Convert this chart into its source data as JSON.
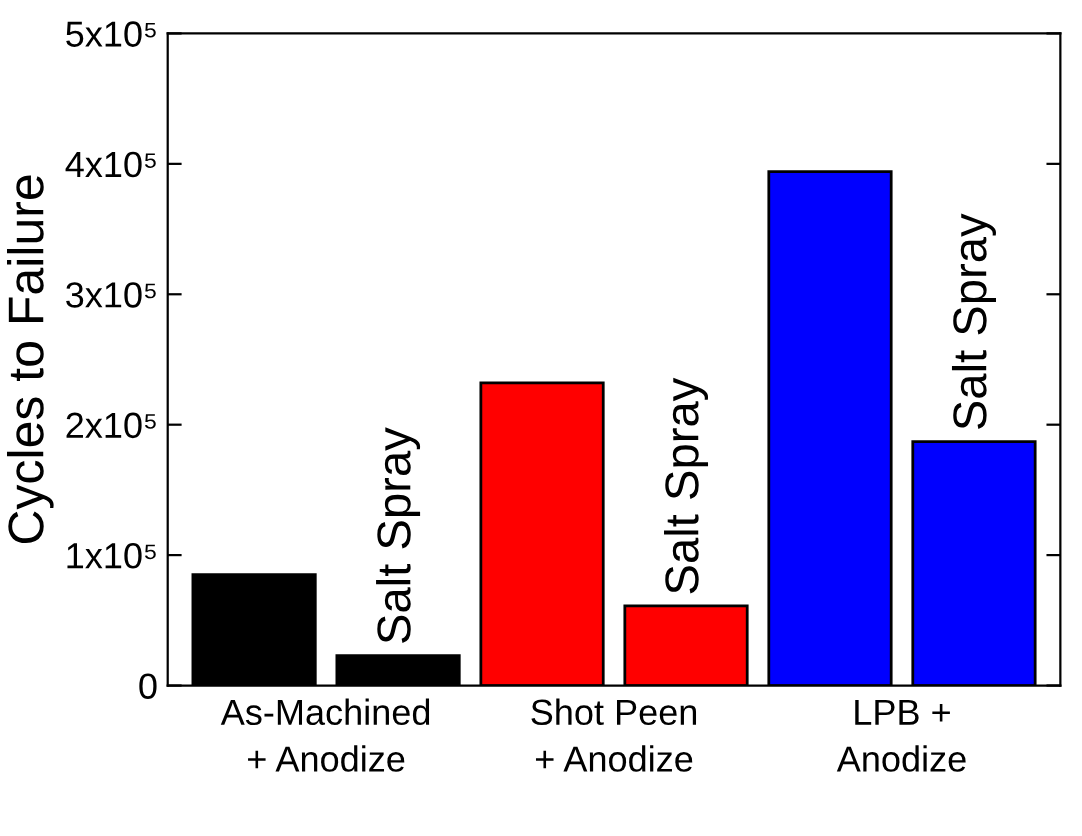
{
  "chart_data": {
    "type": "bar",
    "ylabel": "Cycles to Failure",
    "categories": [
      "As-Machined\n+ Anodize",
      "Salt Spray",
      "Shot Peen\n+ Anodize",
      "Salt Spray",
      "LPB +\nAnodize",
      "Salt Spray"
    ],
    "values": [
      85000,
      23000,
      232000,
      61000,
      394000,
      187000
    ],
    "colors": [
      "#000000",
      "#000000",
      "#ff0000",
      "#ff0000",
      "#0000ff",
      "#0000ff"
    ],
    "ylim": [
      0,
      500000
    ],
    "yticks": [
      {
        "value": 0,
        "label": "0"
      },
      {
        "value": 100000,
        "label": "1x10⁵"
      },
      {
        "value": 200000,
        "label": "2x10⁵"
      },
      {
        "value": 300000,
        "label": "3x10⁵"
      },
      {
        "value": 400000,
        "label": "4x10⁵"
      },
      {
        "value": 500000,
        "label": "5x10⁵"
      }
    ],
    "grid": false,
    "legend": false
  }
}
